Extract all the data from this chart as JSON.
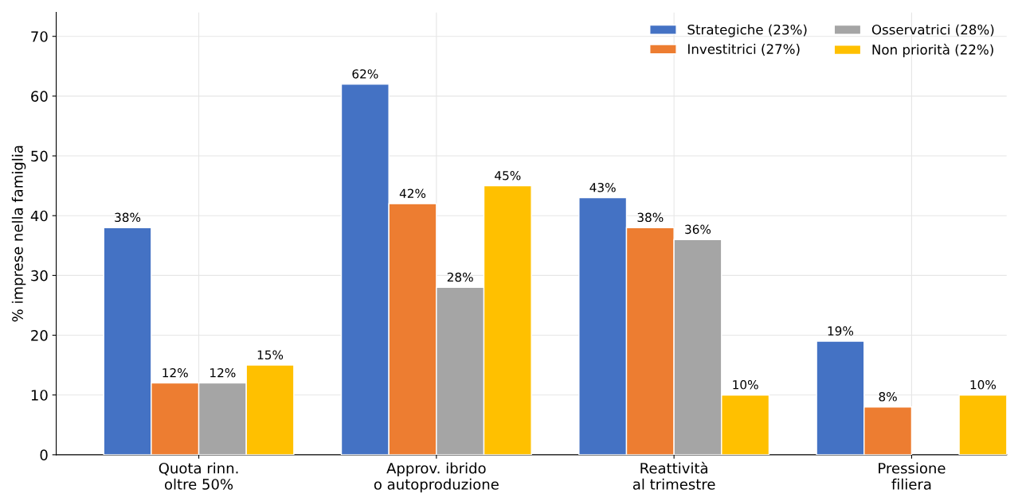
{
  "chart_data": {
    "type": "bar",
    "ylabel": "% imprese nella famiglia",
    "categories": [
      "Quota rinn.\noltre 50%",
      "Approv. ibrido\no autoproduzione",
      "Reattività\nal trimestre",
      "Pressione\nfiliera"
    ],
    "series": [
      {
        "name": "Strategiche (23%)",
        "color": "#4472c4",
        "values": [
          38,
          62,
          43,
          19
        ],
        "value_labels": [
          "38%",
          "62%",
          "43%",
          "19%"
        ]
      },
      {
        "name": "Investitrici (27%)",
        "color": "#ed7d31",
        "values": [
          12,
          42,
          38,
          8
        ],
        "value_labels": [
          "12%",
          "42%",
          "38%",
          "8%"
        ]
      },
      {
        "name": "Osservatrici (28%)",
        "color": "#a5a5a5",
        "values": [
          12,
          28,
          36,
          null
        ],
        "value_labels": [
          "12%",
          "28%",
          "36%",
          null
        ]
      },
      {
        "name": "Non priorità (22%)",
        "color": "#ffc000",
        "values": [
          15,
          45,
          10,
          10
        ],
        "value_labels": [
          "15%",
          "45%",
          "10%",
          "10%"
        ]
      }
    ],
    "ylim": [
      0,
      74
    ],
    "yticks": [
      0,
      10,
      20,
      30,
      40,
      50,
      60,
      70
    ],
    "grid": true,
    "legend": "top right"
  }
}
